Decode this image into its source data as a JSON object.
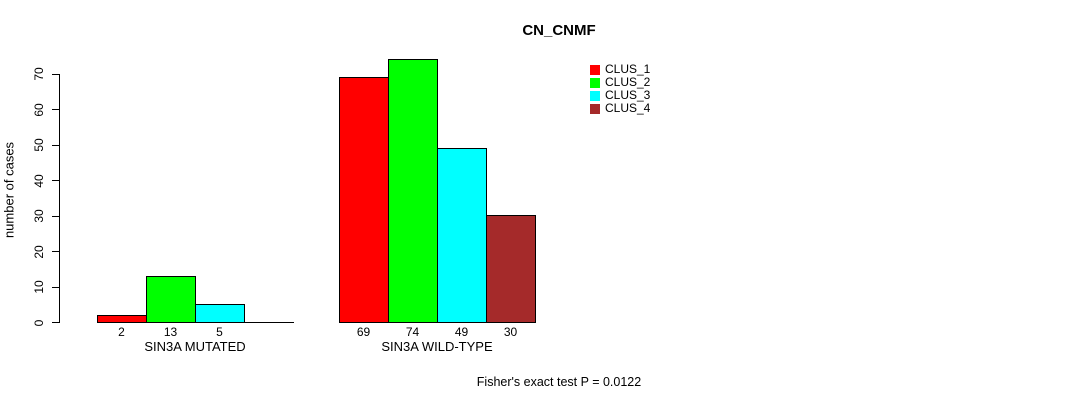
{
  "chart_data": {
    "type": "bar",
    "title": "CN_CNMF",
    "ylabel": "number of cases",
    "xlabel": "",
    "footnote": "Fisher's exact test P = 0.0122",
    "categories": [
      "SIN3A MUTATED",
      "SIN3A WILD-TYPE"
    ],
    "series": [
      {
        "name": "CLUS_1",
        "color": "#ff0000",
        "values": [
          2,
          69
        ]
      },
      {
        "name": "CLUS_2",
        "color": "#00ff00",
        "values": [
          13,
          74
        ]
      },
      {
        "name": "CLUS_3",
        "color": "#00ffff",
        "values": [
          5,
          49
        ]
      },
      {
        "name": "CLUS_4",
        "color": "#a52a2a",
        "values": [
          0,
          30
        ]
      }
    ],
    "bar_value_labels": {
      "show": true,
      "hide_zero": true
    },
    "y_ticks": [
      0,
      10,
      20,
      30,
      40,
      50,
      60,
      70
    ],
    "ylim": [
      0,
      74
    ],
    "grid": false,
    "legend": {
      "position": "top-right",
      "entries": [
        "CLUS_1",
        "CLUS_2",
        "CLUS_3",
        "CLUS_4"
      ]
    },
    "axis_color": "#000000",
    "bar_border_color": "#000000"
  }
}
